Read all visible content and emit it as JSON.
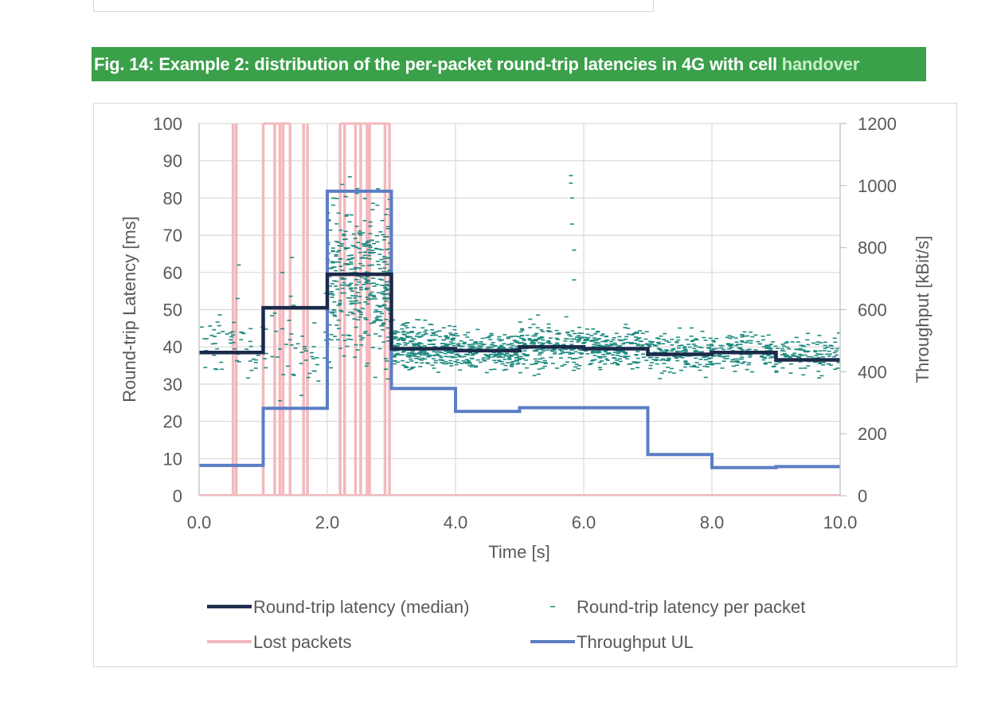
{
  "caption": {
    "prefix": "Fig. 14: Example 2: distribution of the per-packet round-trip latencies in 4G with cell",
    "highlight": "handover"
  },
  "colors": {
    "caption_bg": "#3aa04a",
    "median": "#1b2a4a",
    "per_packet": "#1d8a80",
    "lost": "#f2b8bd",
    "throughput": "#5b7ec4",
    "grid": "#d9d9d9"
  },
  "chart_data": {
    "type": "line",
    "title": "",
    "xlabel": "Time [s]",
    "ylabel_left": "Round-trip Latency [ms]",
    "ylabel_right": "Throughput  [kBit/s]",
    "xlim": [
      0,
      10
    ],
    "ylim_left": [
      0,
      100
    ],
    "ylim_right": [
      0,
      1200
    ],
    "x_ticks": [
      "0.0",
      "2.0",
      "4.0",
      "6.0",
      "8.0",
      "10.0"
    ],
    "x_tick_values": [
      0,
      2,
      4,
      6,
      8,
      10
    ],
    "y_ticks_left": [
      "0",
      "10",
      "20",
      "30",
      "40",
      "50",
      "60",
      "70",
      "80",
      "90",
      "100"
    ],
    "y_ticks_right": [
      "0",
      "200",
      "400",
      "600",
      "800",
      "1000",
      "1200"
    ],
    "grid": true,
    "legend_position": "bottom",
    "legend": [
      {
        "label": "Round-trip latency (median)",
        "style": "line",
        "color": "#1b2a4a"
      },
      {
        "label": "Round-trip latency per packet",
        "style": "dash",
        "color": "#1d8a80"
      },
      {
        "label": "Lost packets",
        "style": "line",
        "color": "#f2b8bd"
      },
      {
        "label": "Throughput UL",
        "style": "line",
        "color": "#5b7ec4"
      }
    ],
    "series": [
      {
        "name": "Round-trip latency (median)",
        "axis": "left",
        "kind": "step",
        "points": [
          [
            0,
            38.5
          ],
          [
            1,
            38.5
          ],
          [
            1,
            50.5
          ],
          [
            2,
            50.5
          ],
          [
            2,
            59.5
          ],
          [
            3,
            59.5
          ],
          [
            3,
            39.5
          ],
          [
            4,
            39.5
          ],
          [
            4,
            39
          ],
          [
            5,
            39
          ],
          [
            5,
            40
          ],
          [
            6,
            40
          ],
          [
            6,
            39.5
          ],
          [
            7,
            39.5
          ],
          [
            7,
            38
          ],
          [
            8,
            38
          ],
          [
            8,
            38.5
          ],
          [
            9,
            38.5
          ],
          [
            9,
            36.5
          ],
          [
            10,
            36.5
          ]
        ]
      },
      {
        "name": "Throughput UL",
        "axis": "right",
        "kind": "step",
        "points": [
          [
            0,
            98
          ],
          [
            1,
            98
          ],
          [
            1,
            282
          ],
          [
            2,
            282
          ],
          [
            2,
            982
          ],
          [
            3,
            982
          ],
          [
            3,
            346
          ],
          [
            4,
            346
          ],
          [
            4,
            272
          ],
          [
            5,
            272
          ],
          [
            5,
            284
          ],
          [
            6,
            284
          ],
          [
            7,
            284
          ],
          [
            7,
            133
          ],
          [
            8,
            133
          ],
          [
            8,
            91
          ],
          [
            9,
            91
          ],
          [
            9,
            94
          ],
          [
            10,
            94
          ]
        ]
      },
      {
        "name": "Lost packets",
        "axis": "left",
        "kind": "impulse",
        "x": [
          0.53,
          0.58,
          1.0,
          1.18,
          1.26,
          1.31,
          1.42,
          1.63,
          1.69,
          2.2,
          2.27,
          2.44,
          2.52,
          2.62,
          2.66,
          2.9,
          2.97
        ],
        "value": 100
      },
      {
        "name": "Round-trip latency per packet",
        "axis": "left",
        "kind": "scatter",
        "segments": [
          {
            "x_range": [
              0,
              1
            ],
            "center": 40,
            "spread": 9,
            "count": 60
          },
          {
            "x_range": [
              1,
              2
            ],
            "center": 40,
            "spread": 15,
            "count": 50
          },
          {
            "x_range": [
              2,
              3
            ],
            "center": 58,
            "spread": 25,
            "count": 420
          },
          {
            "x_range": [
              3,
              4
            ],
            "center": 40,
            "spread": 7,
            "count": 280
          },
          {
            "x_range": [
              4,
              5
            ],
            "center": 39,
            "spread": 6,
            "count": 230
          },
          {
            "x_range": [
              5,
              6
            ],
            "center": 40,
            "spread": 7,
            "count": 230
          },
          {
            "x_range": [
              6,
              7
            ],
            "center": 40,
            "spread": 6,
            "count": 210
          },
          {
            "x_range": [
              7,
              8
            ],
            "center": 38,
            "spread": 6,
            "count": 180
          },
          {
            "x_range": [
              8,
              9
            ],
            "center": 39,
            "spread": 6,
            "count": 150
          },
          {
            "x_range": [
              9,
              10
            ],
            "center": 38,
            "spread": 6,
            "count": 130
          }
        ],
        "outliers": [
          [
            5.8,
            86
          ],
          [
            5.8,
            84
          ],
          [
            5.82,
            80
          ],
          [
            5.82,
            73
          ],
          [
            5.85,
            66
          ],
          [
            5.85,
            58
          ],
          [
            0.62,
            62
          ],
          [
            0.6,
            53
          ],
          [
            1.45,
            64
          ],
          [
            1.3,
            60
          ]
        ]
      }
    ]
  }
}
